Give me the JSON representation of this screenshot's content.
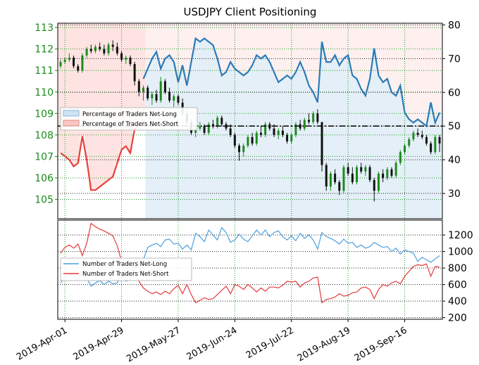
{
  "title": "USDJPY Client Positioning",
  "chart_data": [
    {
      "type": "line",
      "panel": "top",
      "title": "USDJPY Client Positioning",
      "left_axis": {
        "ticks": [
          105,
          106,
          107,
          108,
          109,
          110,
          111,
          112,
          113
        ],
        "range": [
          104.1,
          113.2
        ],
        "color": "#1a8a1a"
      },
      "right_axis": {
        "ticks": [
          30,
          40,
          50,
          60,
          70,
          80
        ],
        "range": [
          22.5,
          80.5
        ]
      },
      "reference_line": 50,
      "legend": {
        "position": "left",
        "entries": [
          "Percentage of Traders Net-Long",
          "Percentage of Traders Net-Short"
        ]
      },
      "price_ohlc": [
        [
          0,
          111.2,
          111.5,
          111.1,
          111.4
        ],
        [
          1,
          111.4,
          111.6,
          111.3,
          111.5
        ],
        [
          2,
          111.5,
          111.8,
          111.4,
          111.6
        ],
        [
          3,
          111.6,
          111.7,
          111.1,
          111.2
        ],
        [
          4,
          111.2,
          111.3,
          110.9,
          111.0
        ],
        [
          5,
          111.0,
          111.8,
          110.9,
          111.7
        ],
        [
          6,
          111.7,
          112.1,
          111.6,
          112.0
        ],
        [
          7,
          112.0,
          112.2,
          111.8,
          111.9
        ],
        [
          8,
          111.9,
          112.2,
          111.8,
          112.1
        ],
        [
          9,
          112.1,
          112.3,
          111.9,
          112.0
        ],
        [
          10,
          112.0,
          112.2,
          111.7,
          111.8
        ],
        [
          11,
          111.8,
          112.3,
          111.7,
          112.2
        ],
        [
          12,
          112.2,
          112.4,
          111.9,
          112.1
        ],
        [
          13,
          112.1,
          112.3,
          111.7,
          111.8
        ],
        [
          14,
          111.8,
          111.9,
          111.4,
          111.5
        ],
        [
          15,
          111.5,
          111.7,
          111.3,
          111.6
        ],
        [
          16,
          111.6,
          111.7,
          111.2,
          111.3
        ],
        [
          17,
          111.3,
          111.4,
          110.3,
          110.5
        ],
        [
          18,
          110.5,
          110.6,
          109.8,
          110.0
        ],
        [
          19,
          110.0,
          110.3,
          109.6,
          110.2
        ],
        [
          20,
          110.2,
          110.3,
          109.6,
          109.7
        ],
        [
          21,
          109.7,
          110.0,
          109.4,
          109.9
        ],
        [
          22,
          109.9,
          110.1,
          109.5,
          109.6
        ],
        [
          23,
          109.6,
          110.7,
          109.5,
          110.5
        ],
        [
          24,
          110.5,
          110.6,
          109.9,
          110.0
        ],
        [
          25,
          110.0,
          110.2,
          109.5,
          109.6
        ],
        [
          26,
          109.6,
          109.9,
          109.3,
          109.8
        ],
        [
          27,
          109.8,
          109.9,
          109.4,
          109.5
        ],
        [
          28,
          109.5,
          109.7,
          108.9,
          109.0
        ],
        [
          29,
          109.0,
          109.2,
          108.5,
          108.6
        ],
        [
          30,
          108.6,
          108.7,
          108.0,
          108.1
        ],
        [
          31,
          108.1,
          108.4,
          107.9,
          108.3
        ],
        [
          32,
          108.3,
          108.6,
          108.2,
          108.4
        ],
        [
          33,
          108.4,
          108.5,
          108.0,
          108.1
        ],
        [
          34,
          108.1,
          108.6,
          108.0,
          108.5
        ],
        [
          35,
          108.5,
          108.7,
          108.3,
          108.4
        ],
        [
          36,
          108.4,
          108.9,
          108.3,
          108.8
        ],
        [
          37,
          108.8,
          108.9,
          108.4,
          108.5
        ],
        [
          38,
          108.5,
          108.6,
          108.2,
          108.3
        ],
        [
          39,
          108.3,
          108.5,
          107.9,
          108.0
        ],
        [
          40,
          108.0,
          108.1,
          107.4,
          107.5
        ],
        [
          41,
          107.5,
          107.6,
          106.8,
          107.2
        ],
        [
          42,
          107.2,
          107.6,
          107.0,
          107.5
        ],
        [
          43,
          107.5,
          108.0,
          107.4,
          107.9
        ],
        [
          44,
          107.9,
          108.1,
          107.5,
          107.6
        ],
        [
          45,
          107.6,
          108.2,
          107.5,
          108.1
        ],
        [
          46,
          108.1,
          108.4,
          107.9,
          108.0
        ],
        [
          47,
          108.0,
          108.6,
          107.9,
          108.5
        ],
        [
          48,
          108.5,
          108.6,
          108.2,
          108.3
        ],
        [
          49,
          108.3,
          108.5,
          107.9,
          108.0
        ],
        [
          50,
          108.0,
          108.3,
          107.8,
          108.2
        ],
        [
          51,
          108.2,
          108.4,
          107.9,
          108.0
        ],
        [
          52,
          108.0,
          108.1,
          107.6,
          107.7
        ],
        [
          53,
          107.7,
          108.1,
          107.6,
          108.0
        ],
        [
          54,
          108.0,
          108.6,
          107.9,
          108.5
        ],
        [
          55,
          108.5,
          108.7,
          108.2,
          108.3
        ],
        [
          56,
          108.3,
          108.8,
          108.2,
          108.7
        ],
        [
          57,
          108.7,
          109.0,
          108.5,
          108.6
        ],
        [
          58,
          108.6,
          109.1,
          108.5,
          109.0
        ],
        [
          59,
          109.0,
          109.2,
          108.5,
          108.6
        ],
        [
          60,
          108.6,
          107.5,
          106.3,
          106.6
        ],
        [
          61,
          106.6,
          106.7,
          105.4,
          105.6
        ],
        [
          62,
          105.6,
          106.3,
          105.4,
          106.2
        ],
        [
          63,
          106.2,
          106.4,
          105.7,
          105.8
        ],
        [
          64,
          105.8,
          105.9,
          105.2,
          105.4
        ],
        [
          65,
          105.4,
          106.6,
          105.3,
          106.5
        ],
        [
          66,
          106.5,
          106.7,
          106.1,
          106.2
        ],
        [
          67,
          106.2,
          106.5,
          105.7,
          105.8
        ],
        [
          68,
          105.8,
          106.6,
          105.7,
          106.5
        ],
        [
          69,
          106.5,
          106.7,
          106.2,
          106.3
        ],
        [
          70,
          106.3,
          106.6,
          106.1,
          106.5
        ],
        [
          71,
          106.5,
          106.6,
          105.8,
          105.9
        ],
        [
          72,
          105.9,
          106.0,
          104.9,
          105.4
        ],
        [
          73,
          105.4,
          106.3,
          105.3,
          106.2
        ],
        [
          74,
          106.2,
          106.4,
          105.8,
          106.0
        ],
        [
          75,
          106.0,
          106.5,
          105.9,
          106.4
        ],
        [
          76,
          106.4,
          106.5,
          106.0,
          106.1
        ],
        [
          77,
          106.1,
          106.8,
          106.0,
          106.7
        ],
        [
          78,
          106.7,
          107.3,
          106.6,
          107.2
        ],
        [
          79,
          107.2,
          107.6,
          107.1,
          107.5
        ],
        [
          80,
          107.5,
          107.9,
          107.4,
          107.8
        ],
        [
          81,
          107.8,
          108.2,
          107.7,
          108.1
        ],
        [
          82,
          108.1,
          108.3,
          107.9,
          108.0
        ],
        [
          83,
          108.0,
          108.2,
          107.8,
          107.9
        ],
        [
          84,
          107.9,
          108.0,
          107.5,
          107.6
        ],
        [
          85,
          107.6,
          107.7,
          107.1,
          107.2
        ],
        [
          86,
          107.2,
          108.0,
          107.1,
          107.9
        ],
        [
          87,
          107.9,
          108.0,
          107.2,
          107.6
        ]
      ],
      "series": [
        {
          "name": "Percentage of Traders Net-Long",
          "color": "#2c7bb6",
          "values": [
            null,
            null,
            null,
            null,
            null,
            null,
            null,
            null,
            null,
            null,
            null,
            null,
            null,
            null,
            null,
            null,
            null,
            null,
            null,
            64,
            67,
            70,
            72,
            67,
            70,
            71,
            69,
            63,
            68,
            62,
            69,
            76,
            75,
            76,
            75,
            74,
            70,
            65,
            66,
            69,
            67,
            66,
            65,
            66,
            68,
            71,
            70,
            71,
            69,
            66,
            63,
            64,
            65,
            64,
            66,
            69,
            66,
            62,
            60,
            57,
            75,
            69,
            69,
            71,
            68,
            70,
            71,
            65,
            64,
            61,
            59,
            64,
            73,
            65,
            63,
            64,
            60,
            59,
            62,
            54,
            52,
            51,
            52,
            51,
            50,
            57,
            51,
            54
          ]
        },
        {
          "name": "Percentage of Traders Net-Short",
          "color": "#e8413c",
          "values": [
            42,
            41,
            40,
            38,
            39,
            47,
            40,
            31,
            31,
            32,
            33,
            34,
            35,
            39,
            43,
            44,
            42,
            49,
            50,
            50,
            null,
            null,
            null,
            null,
            null,
            null,
            null,
            null,
            null,
            null,
            null,
            null,
            null,
            null,
            null,
            null,
            null,
            null,
            null,
            null,
            null,
            null,
            null,
            null,
            null,
            null,
            null,
            null,
            null,
            null,
            null,
            null,
            null,
            null,
            null,
            null,
            null,
            null,
            null,
            null,
            null,
            null,
            null,
            null,
            null,
            null,
            null,
            null,
            null,
            null,
            null,
            null,
            null,
            null,
            null,
            null,
            null,
            null,
            null,
            null,
            null,
            null,
            null,
            null,
            null,
            null,
            null,
            null
          ]
        }
      ],
      "x_ticks": [
        "2019-Apr-01",
        "2019-Apr-29",
        "2019-May-27",
        "2019-Jun-24",
        "2019-Jul-22",
        "2019-Aug-19",
        "2019-Sep-16"
      ]
    },
    {
      "type": "line",
      "panel": "bottom",
      "right_axis": {
        "ticks": [
          200,
          400,
          600,
          800,
          1000,
          1200
        ],
        "range": [
          180,
          1380
        ]
      },
      "legend": {
        "position": "left",
        "entries": [
          "Number of Traders Net-Long",
          "Number of Traders Net-Short"
        ]
      },
      "series": [
        {
          "name": "Number of Traders Net-Long",
          "color": "#4a9fe0",
          "values": [
            620,
            700,
            710,
            730,
            650,
            760,
            680,
            580,
            620,
            650,
            600,
            640,
            610,
            620,
            720,
            640,
            660,
            780,
            880,
            900,
            1050,
            1080,
            1100,
            1060,
            1140,
            1150,
            1090,
            1100,
            1030,
            1080,
            1020,
            1220,
            1180,
            1120,
            1260,
            1200,
            1140,
            1290,
            1230,
            1110,
            1140,
            1210,
            1150,
            1120,
            1190,
            1260,
            1200,
            1260,
            1180,
            1230,
            1250,
            1180,
            1140,
            1190,
            1130,
            1220,
            1160,
            1200,
            1140,
            1030,
            1230,
            1180,
            1160,
            1130,
            1090,
            1150,
            1100,
            1110,
            1050,
            1080,
            1040,
            1060,
            1110,
            1080,
            1050,
            1060,
            1000,
            1040,
            970,
            1020,
            1000,
            980,
            880,
            930,
            900,
            870,
            910,
            950
          ]
        },
        {
          "name": "Number of Traders Net-Short",
          "color": "#e33b3b",
          "values": [
            980,
            1050,
            1080,
            1040,
            1090,
            950,
            1100,
            1340,
            1300,
            1270,
            1250,
            1220,
            1190,
            1070,
            880,
            850,
            860,
            730,
            640,
            560,
            520,
            490,
            510,
            480,
            520,
            490,
            550,
            590,
            490,
            600,
            480,
            380,
            410,
            440,
            420,
            430,
            480,
            530,
            580,
            490,
            600,
            580,
            540,
            600,
            560,
            510,
            560,
            520,
            570,
            570,
            560,
            590,
            640,
            630,
            640,
            570,
            620,
            640,
            680,
            690,
            380,
            420,
            430,
            450,
            490,
            460,
            470,
            500,
            510,
            560,
            570,
            540,
            430,
            540,
            600,
            580,
            620,
            640,
            610,
            700,
            760,
            820,
            840,
            830,
            850,
            700,
            820,
            810
          ]
        }
      ]
    }
  ]
}
